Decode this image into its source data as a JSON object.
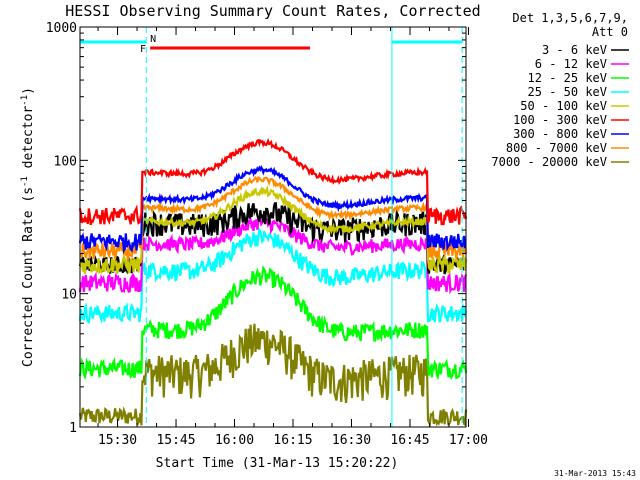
{
  "chart_data": {
    "type": "line",
    "title": "HESSI Observing Summary Count Rates, Corrected",
    "xlabel": "Start Time (31-Mar-13 15:20:22)",
    "ylabel_main": "Corrected Count Rate (s",
    "ylabel_sup1": "-1",
    "ylabel_mid": " detector",
    "ylabel_sup2": "-1",
    "ylabel_end": ")",
    "y_scale": "log",
    "ylim": [
      1,
      1000
    ],
    "xlim_minutes": [
      0,
      99
    ],
    "x_ticks": [
      {
        "m": 9.63,
        "label": "15:30"
      },
      {
        "m": 24.63,
        "label": "15:45"
      },
      {
        "m": 39.63,
        "label": "16:00"
      },
      {
        "m": 54.63,
        "label": "16:15"
      },
      {
        "m": 69.63,
        "label": "16:30"
      },
      {
        "m": 84.63,
        "label": "16:45"
      },
      {
        "m": 99.63,
        "label": "17:00"
      }
    ],
    "y_ticks": [
      {
        "v": 1,
        "label": "1"
      },
      {
        "v": 10,
        "label": "10"
      },
      {
        "v": 100,
        "label": "100"
      },
      {
        "v": 1000,
        "label": "1000"
      }
    ],
    "legend_header": [
      "Det 1,3,5,6,7,9,",
      "Att 0"
    ],
    "legend_placement": "right",
    "series": [
      {
        "name": "3 - 6 keV",
        "color": "#000000",
        "base": 30,
        "orbit_pct": 0.17,
        "hump": 0.08,
        "noise": 0.07
      },
      {
        "name": "6 - 12 keV",
        "color": "#ff00ff",
        "base": 22,
        "orbit_pct": 0.1,
        "hump": 0.1,
        "noise": 0.04
      },
      {
        "name": "12 - 25 keV",
        "color": "#00ff00",
        "base": 5,
        "orbit_pct": 0.1,
        "hump": 0.3,
        "noise": 0.05
      },
      {
        "name": "25 - 50 keV",
        "color": "#00ffff",
        "base": 13,
        "orbit_pct": 0.2,
        "hump": 0.2,
        "noise": 0.05
      },
      {
        "name": "50 - 100 keV",
        "color": "#c8c800",
        "base": 30,
        "orbit_pct": 0.2,
        "hump": 0.18,
        "noise": 0.02
      },
      {
        "name": "100 - 300 keV",
        "color": "#ff0000",
        "base": 70,
        "orbit_pct": 0.2,
        "hump": 0.18,
        "noise": 0.015
      },
      {
        "name": "300 - 800 keV",
        "color": "#0000ff",
        "base": 45,
        "orbit_pct": 0.2,
        "hump": 0.17,
        "noise": 0.015
      },
      {
        "name": "800 - 7000 keV",
        "color": "#ff8c00",
        "base": 38,
        "orbit_pct": 0.2,
        "hump": 0.17,
        "noise": 0.015
      },
      {
        "name": "7000 - 20000 keV",
        "color": "#808000",
        "base": 2.2,
        "orbit_pct": 0.22,
        "hump": 0.2,
        "noise": 0.12
      }
    ],
    "flags": [
      {
        "label": "N",
        "color": "#00ffff"
      },
      {
        "label": "F",
        "color": "#ff0000"
      }
    ],
    "footer_timestamp": "31-Mar-2013 15:43"
  }
}
